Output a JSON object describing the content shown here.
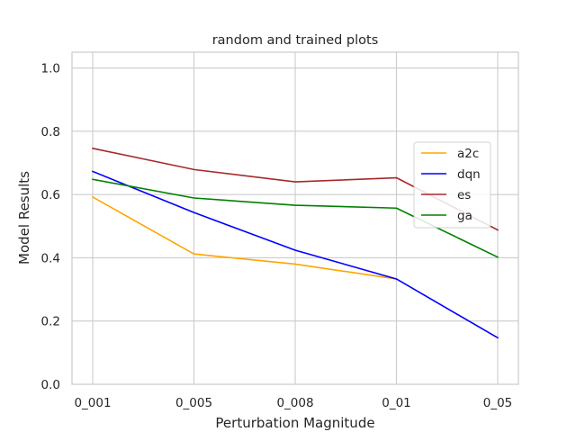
{
  "chart_data": {
    "type": "line",
    "title": "random and trained plots",
    "xlabel": "Perturbation Magnitude",
    "ylabel": "Model Results",
    "categories": [
      "0_001",
      "0_005",
      "0_008",
      "0_01",
      "0_05"
    ],
    "ylim": [
      0.0,
      1.05
    ],
    "yticks": [
      0.0,
      0.2,
      0.4,
      0.6,
      0.8,
      1.0
    ],
    "ytick_labels": [
      "0.0",
      "0.2",
      "0.4",
      "0.6",
      "0.8",
      "1.0"
    ],
    "grid": true,
    "legend_position": "right",
    "series": [
      {
        "name": "a2c",
        "color": "#ffa500",
        "values": [
          0.592,
          0.412,
          0.38,
          0.333,
          null
        ]
      },
      {
        "name": "dqn",
        "color": "#0000ff",
        "values": [
          0.673,
          0.543,
          0.424,
          0.333,
          0.147
        ]
      },
      {
        "name": "es",
        "color": "#a52a2a",
        "values": [
          0.746,
          0.679,
          0.64,
          0.653,
          0.488
        ]
      },
      {
        "name": "ga",
        "color": "#008000",
        "values": [
          0.648,
          0.589,
          0.566,
          0.557,
          0.402
        ]
      }
    ]
  }
}
